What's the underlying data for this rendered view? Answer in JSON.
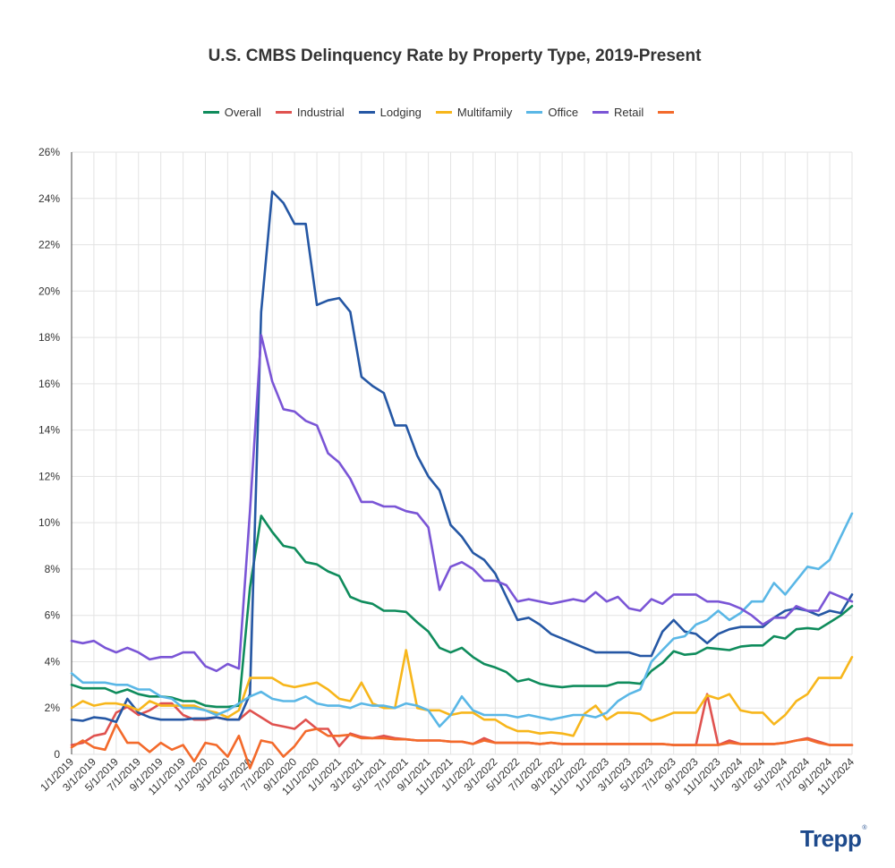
{
  "chart_data": {
    "type": "line",
    "title": "U.S. CMBS Delinquency Rate by Property Type, 2019-Present",
    "xlabel": "",
    "ylabel": "",
    "ylim": [
      0,
      26
    ],
    "yticks": [
      0,
      2,
      4,
      6,
      8,
      10,
      12,
      14,
      16,
      18,
      20,
      22,
      24,
      26
    ],
    "ytick_labels": [
      "0",
      "2%",
      "4%",
      "6%",
      "8%",
      "10%",
      "12%",
      "14%",
      "16%",
      "18%",
      "20%",
      "22%",
      "24%",
      "26%"
    ],
    "grid": true,
    "legend_position": "top-center",
    "x_tick_labels": [
      "1/1/2019",
      "3/1/2019",
      "5/1/2019",
      "7/1/2019",
      "9/1/2019",
      "11/1/2019",
      "1/1/2020",
      "3/1/2020",
      "5/1/2020",
      "7/1/2020",
      "9/1/2020",
      "11/1/2020",
      "1/1/2021",
      "3/1/2021",
      "5/1/2021",
      "7/1/2021",
      "9/1/2021",
      "11/1/2021",
      "1/1/2022",
      "3/1/2022",
      "5/1/2022",
      "7/1/2022",
      "9/1/2022",
      "11/1/2022",
      "1/1/2023",
      "3/1/2023",
      "5/1/2023",
      "7/1/2023",
      "9/1/2023",
      "11/1/2023",
      "1/1/2024",
      "3/1/2024",
      "5/1/2024",
      "7/1/2024",
      "9/1/2024",
      "11/1/2024"
    ],
    "series": [
      {
        "name": "Overall",
        "color": "#0f8c5c",
        "values": [
          3.0,
          2.85,
          2.85,
          2.85,
          2.65,
          2.8,
          2.6,
          2.5,
          2.5,
          2.45,
          2.3,
          2.3,
          2.1,
          2.05,
          2.05,
          2.1,
          7.2,
          10.3,
          9.6,
          9.0,
          8.9,
          8.3,
          8.2,
          7.9,
          7.7,
          6.8,
          6.6,
          6.5,
          6.2,
          6.2,
          6.15,
          5.7,
          5.3,
          4.6,
          4.4,
          4.6,
          4.2,
          3.9,
          3.75,
          3.55,
          3.15,
          3.25,
          3.05,
          2.95,
          2.9,
          2.95,
          2.95,
          2.95,
          2.95,
          3.1,
          3.1,
          3.05,
          3.6,
          3.95,
          4.45,
          4.3,
          4.35,
          4.6,
          4.55,
          4.5,
          4.65,
          4.7,
          4.7,
          5.1,
          5.0,
          5.4,
          5.45,
          5.4,
          5.7,
          6.0,
          6.4
        ]
      },
      {
        "name": "Industrial",
        "color": "#e0524f",
        "values": [
          0.4,
          0.5,
          0.8,
          0.9,
          1.8,
          2.05,
          1.7,
          1.9,
          2.2,
          2.2,
          1.7,
          1.5,
          1.5,
          1.6,
          1.5,
          1.5,
          1.9,
          1.6,
          1.3,
          1.2,
          1.1,
          1.5,
          1.1,
          1.1,
          0.35,
          0.9,
          0.75,
          0.7,
          0.8,
          0.7,
          0.65,
          0.6,
          0.6,
          0.6,
          0.55,
          0.55,
          0.45,
          0.7,
          0.5,
          0.5,
          0.5,
          0.5,
          0.45,
          0.5,
          0.45,
          0.45,
          0.45,
          0.45,
          0.45,
          0.45,
          0.45,
          0.45,
          0.45,
          0.45,
          0.4,
          0.4,
          0.4,
          2.6,
          0.4,
          0.6,
          0.45,
          0.45,
          0.45,
          0.45,
          0.5,
          0.6,
          0.7,
          0.55,
          0.4,
          0.4,
          0.4
        ]
      },
      {
        "name": "Lodging",
        "color": "#2557a4",
        "values": [
          1.5,
          1.45,
          1.6,
          1.55,
          1.4,
          2.4,
          1.8,
          1.6,
          1.5,
          1.5,
          1.5,
          1.55,
          1.55,
          1.6,
          1.5,
          1.5,
          2.6,
          19.1,
          24.3,
          23.8,
          22.9,
          22.9,
          19.4,
          19.6,
          19.7,
          19.1,
          16.3,
          15.9,
          15.6,
          14.2,
          14.2,
          12.9,
          12.0,
          11.4,
          9.9,
          9.4,
          8.7,
          8.4,
          7.8,
          6.8,
          5.8,
          5.9,
          5.6,
          5.2,
          5.0,
          4.8,
          4.6,
          4.4,
          4.4,
          4.4,
          4.4,
          4.25,
          4.25,
          5.3,
          5.8,
          5.3,
          5.2,
          4.8,
          5.2,
          5.4,
          5.5,
          5.5,
          5.5,
          5.9,
          6.2,
          6.3,
          6.2,
          6.0,
          6.2,
          6.1,
          6.9
        ]
      },
      {
        "name": "Multifamily",
        "color": "#f7b61b",
        "values": [
          2.0,
          2.3,
          2.1,
          2.2,
          2.2,
          2.1,
          1.9,
          2.3,
          2.1,
          2.1,
          2.1,
          2.1,
          1.9,
          1.8,
          1.6,
          1.9,
          3.3,
          3.3,
          3.3,
          3.0,
          2.9,
          3.0,
          3.1,
          2.8,
          2.4,
          2.3,
          3.1,
          2.2,
          2.0,
          2.0,
          4.5,
          2.0,
          1.9,
          1.9,
          1.7,
          1.8,
          1.8,
          1.5,
          1.5,
          1.2,
          1.0,
          1.0,
          0.9,
          0.95,
          0.9,
          0.8,
          1.75,
          2.1,
          1.5,
          1.8,
          1.8,
          1.75,
          1.45,
          1.6,
          1.8,
          1.8,
          1.8,
          2.55,
          2.4,
          2.6,
          1.9,
          1.8,
          1.8,
          1.3,
          1.7,
          2.3,
          2.6,
          3.3,
          3.3,
          3.3,
          4.2
        ]
      },
      {
        "name": "Office",
        "color": "#5ab7e6",
        "values": [
          3.5,
          3.1,
          3.1,
          3.1,
          3.0,
          3.0,
          2.8,
          2.8,
          2.5,
          2.4,
          2.0,
          2.0,
          1.9,
          1.7,
          1.9,
          2.2,
          2.5,
          2.7,
          2.4,
          2.3,
          2.3,
          2.5,
          2.2,
          2.1,
          2.1,
          2.0,
          2.2,
          2.1,
          2.1,
          2.0,
          2.2,
          2.1,
          1.9,
          1.2,
          1.7,
          2.5,
          1.9,
          1.7,
          1.7,
          1.7,
          1.6,
          1.7,
          1.6,
          1.5,
          1.6,
          1.7,
          1.7,
          1.6,
          1.8,
          2.3,
          2.6,
          2.8,
          4.0,
          4.5,
          5.0,
          5.1,
          5.6,
          5.8,
          6.2,
          5.8,
          6.1,
          6.6,
          6.6,
          7.4,
          6.9,
          7.5,
          8.1,
          8.0,
          8.4,
          9.4,
          10.4
        ]
      },
      {
        "name": "Retail",
        "color": "#7a55d6",
        "values": [
          4.9,
          4.8,
          4.9,
          4.6,
          4.4,
          4.6,
          4.4,
          4.1,
          4.2,
          4.2,
          4.4,
          4.4,
          3.8,
          3.6,
          3.9,
          3.7,
          10.5,
          18.1,
          16.1,
          14.9,
          14.8,
          14.4,
          14.2,
          13.0,
          12.6,
          11.9,
          10.9,
          10.9,
          10.7,
          10.7,
          10.5,
          10.4,
          9.8,
          7.1,
          8.1,
          8.3,
          8.0,
          7.5,
          7.5,
          7.3,
          6.6,
          6.7,
          6.6,
          6.5,
          6.6,
          6.7,
          6.6,
          7.0,
          6.6,
          6.8,
          6.3,
          6.2,
          6.7,
          6.5,
          6.9,
          6.9,
          6.9,
          6.6,
          6.6,
          6.5,
          6.3,
          6.0,
          5.6,
          5.9,
          5.9,
          6.4,
          6.2,
          6.2,
          7.0,
          6.8,
          6.6
        ]
      },
      {
        "name": "",
        "color": "#f36a2b",
        "values": [
          0.3,
          0.6,
          0.3,
          0.2,
          1.3,
          0.5,
          0.5,
          0.1,
          0.5,
          0.2,
          0.4,
          -0.3,
          0.5,
          0.4,
          -0.1,
          0.8,
          -0.6,
          0.6,
          0.5,
          -0.1,
          0.35,
          1.0,
          1.1,
          0.8,
          0.8,
          0.85,
          0.7,
          0.7,
          0.7,
          0.65,
          0.65,
          0.6,
          0.6,
          0.6,
          0.55,
          0.55,
          0.45,
          0.6,
          0.5,
          0.5,
          0.5,
          0.5,
          0.45,
          0.5,
          0.45,
          0.45,
          0.45,
          0.45,
          0.45,
          0.45,
          0.45,
          0.45,
          0.45,
          0.45,
          0.4,
          0.4,
          0.4,
          0.4,
          0.4,
          0.5,
          0.45,
          0.45,
          0.45,
          0.45,
          0.5,
          0.6,
          0.65,
          0.5,
          0.4,
          0.4,
          0.4
        ]
      }
    ]
  },
  "brand": {
    "name": "Trepp",
    "mark": "®"
  }
}
